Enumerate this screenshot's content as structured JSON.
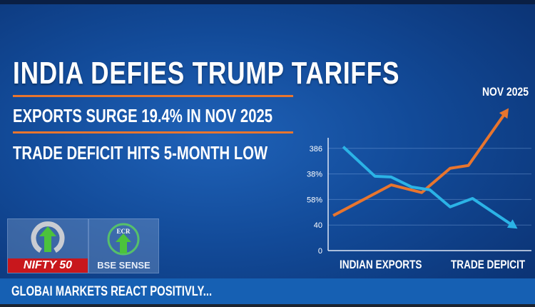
{
  "headline": {
    "title": "INDIA DEFIES TRUMP TARIFFS",
    "subtitle_1": "EXPORTS SURGE 19.4% IN NOV 2025",
    "subtitle_2": "TRADE DEFICIT HITS 5-MONTH LOW"
  },
  "chart_data": {
    "type": "line",
    "annotation": "NOV 2025",
    "y_tick_labels": [
      "0",
      "40",
      "58%",
      "38%",
      "386"
    ],
    "y_tick_values": [
      0,
      1,
      2,
      3,
      4
    ],
    "ylim": [
      0,
      5.6
    ],
    "xlim": [
      0,
      10
    ],
    "grid": true,
    "x_labels": [
      "INDIAN EXPORTS",
      "TRADE DEPICIT"
    ],
    "series": [
      {
        "name": "Indian Exports",
        "color": "#e8752e",
        "x": [
          0.25,
          3.1,
          4.6,
          6.0,
          6.9,
          8.8
        ],
        "y": [
          1.37,
          2.57,
          2.27,
          3.22,
          3.33,
          5.48
        ]
      },
      {
        "name": "Trade Deficit",
        "color": "#2bb3e6",
        "x": [
          0.74,
          2.3,
          3.1,
          4.1,
          5.0,
          6.0,
          7.1,
          9.2
        ],
        "y": [
          4.06,
          2.91,
          2.88,
          2.49,
          2.38,
          1.71,
          2.04,
          0.92
        ]
      }
    ]
  },
  "tiles": {
    "nifty": "NIFTY 50",
    "bse": "BSE SENSE",
    "bse_logo_text": "ECR"
  },
  "ticker": {
    "text": "GLOBAI MARKETS REACT POSITIVLY..."
  }
}
